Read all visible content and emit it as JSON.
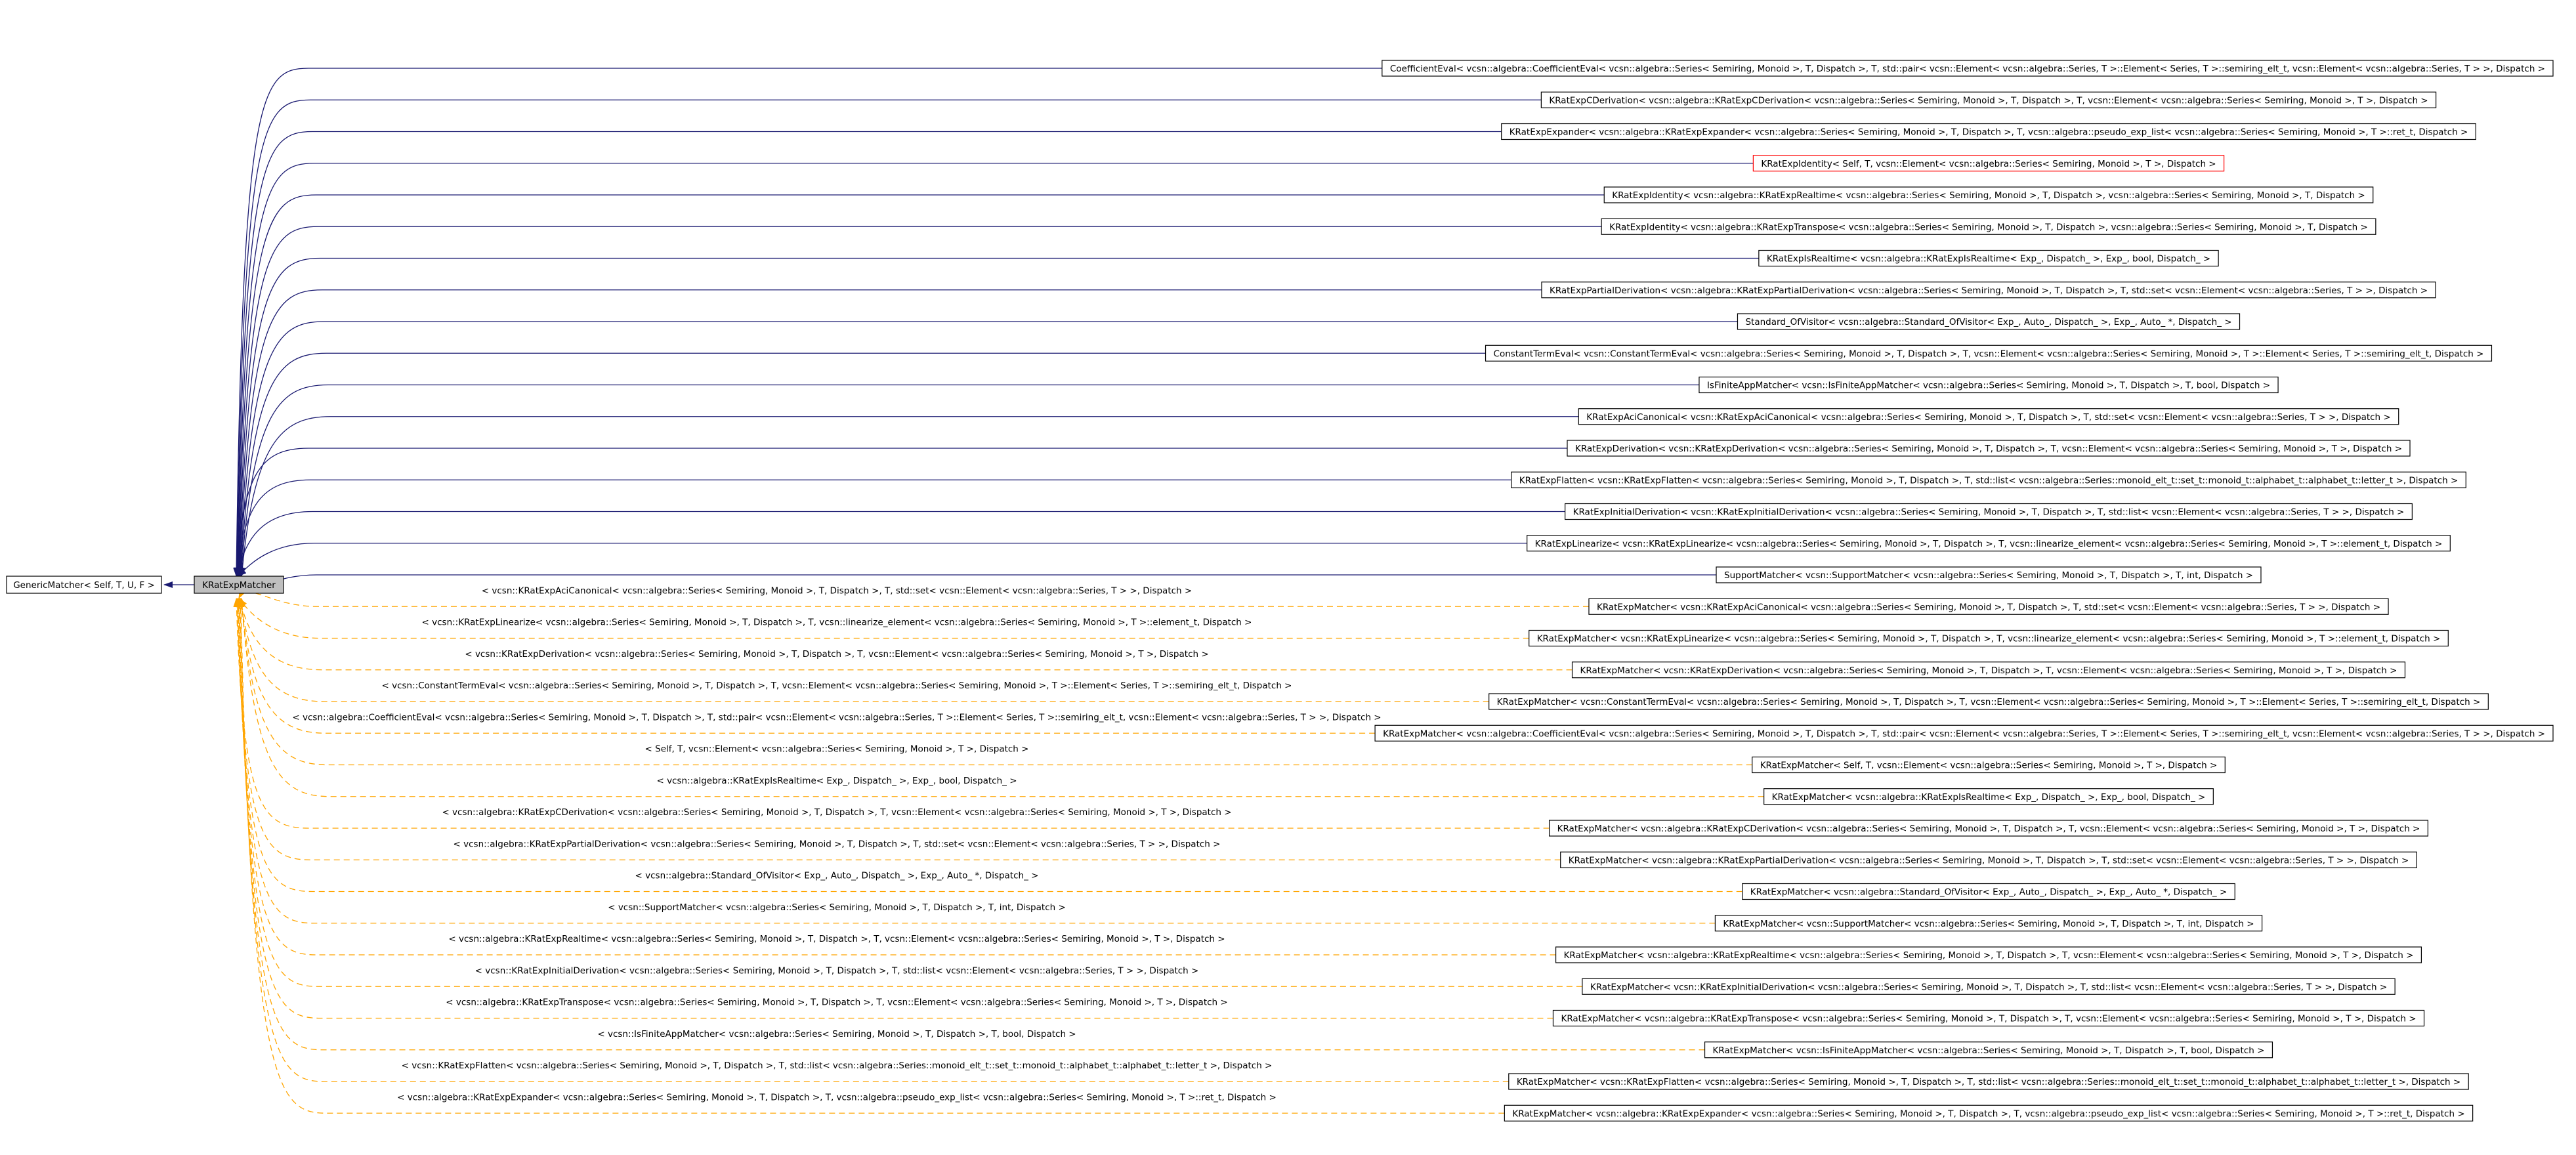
{
  "self_node": "KRatExpMatcher",
  "base_node": "GenericMatcher< Self, T, U, F >",
  "colors": {
    "inheritance_edge": "#191970",
    "template_edge": "#ffa500",
    "self_fill": "#bfbfbf",
    "highlight_border": "#ff0000"
  },
  "derived": [
    {
      "label": "CoefficientEval< vcsn::algebra::CoefficientEval< vcsn::algebra::Series< Semiring, Monoid >, T, Dispatch >, T, std::pair< vcsn::Element< vcsn::algebra::Series, T >::Element< Series, T >::semiring_elt_t, vcsn::Element< vcsn::algebra::Series, T > >, Dispatch >"
    },
    {
      "label": "KRatExpCDerivation< vcsn::algebra::KRatExpCDerivation< vcsn::algebra::Series< Semiring, Monoid >, T, Dispatch >, T, vcsn::Element< vcsn::algebra::Series< Semiring, Monoid >, T >, Dispatch >"
    },
    {
      "label": "KRatExpExpander< vcsn::algebra::KRatExpExpander< vcsn::algebra::Series< Semiring, Monoid >, T, Dispatch >, T, vcsn::algebra::pseudo_exp_list< vcsn::algebra::Series< Semiring, Monoid >, T >::ret_t, Dispatch >"
    },
    {
      "label": "KRatExpIdentity< Self, T, vcsn::Element< vcsn::algebra::Series< Semiring, Monoid >, T >, Dispatch >",
      "highlight": true
    },
    {
      "label": "KRatExpIdentity< vcsn::algebra::KRatExpRealtime< vcsn::algebra::Series< Semiring, Monoid >, T, Dispatch >, vcsn::algebra::Series< Semiring, Monoid >, T, Dispatch >"
    },
    {
      "label": "KRatExpIdentity< vcsn::algebra::KRatExpTranspose< vcsn::algebra::Series< Semiring, Monoid >, T, Dispatch >, vcsn::algebra::Series< Semiring, Monoid >, T, Dispatch >"
    },
    {
      "label": "KRatExpIsRealtime< vcsn::algebra::KRatExpIsRealtime< Exp_, Dispatch_ >, Exp_, bool, Dispatch_ >"
    },
    {
      "label": "KRatExpPartialDerivation< vcsn::algebra::KRatExpPartialDerivation< vcsn::algebra::Series< Semiring, Monoid >, T, Dispatch >, T, std::set< vcsn::Element< vcsn::algebra::Series, T > >, Dispatch >"
    },
    {
      "label": "Standard_OfVisitor< vcsn::algebra::Standard_OfVisitor< Exp_, Auto_, Dispatch_ >, Exp_, Auto_ *, Dispatch_ >"
    },
    {
      "label": "ConstantTermEval< vcsn::ConstantTermEval< vcsn::algebra::Series< Semiring, Monoid >, T, Dispatch >, T, vcsn::Element< vcsn::algebra::Series< Semiring, Monoid >, T >::Element< Series, T >::semiring_elt_t, Dispatch >"
    },
    {
      "label": "IsFiniteAppMatcher< vcsn::IsFiniteAppMatcher< vcsn::algebra::Series< Semiring, Monoid >, T, Dispatch >, T, bool, Dispatch >"
    },
    {
      "label": "KRatExpAciCanonical< vcsn::KRatExpAciCanonical< vcsn::algebra::Series< Semiring, Monoid >, T, Dispatch >, T, std::set< vcsn::Element< vcsn::algebra::Series, T > >, Dispatch >"
    },
    {
      "label": "KRatExpDerivation< vcsn::KRatExpDerivation< vcsn::algebra::Series< Semiring, Monoid >, T, Dispatch >, T, vcsn::Element< vcsn::algebra::Series< Semiring, Monoid >, T >, Dispatch >"
    },
    {
      "label": "KRatExpFlatten< vcsn::KRatExpFlatten< vcsn::algebra::Series< Semiring, Monoid >, T, Dispatch >, T, std::list< vcsn::algebra::Series::monoid_elt_t::set_t::monoid_t::alphabet_t::alphabet_t::letter_t >, Dispatch >"
    },
    {
      "label": "KRatExpInitialDerivation< vcsn::KRatExpInitialDerivation< vcsn::algebra::Series< Semiring, Monoid >, T, Dispatch >, T, std::list< vcsn::Element< vcsn::algebra::Series, T > >, Dispatch >"
    },
    {
      "label": "KRatExpLinearize< vcsn::KRatExpLinearize< vcsn::algebra::Series< Semiring, Monoid >, T, Dispatch >, T, vcsn::linearize_element< vcsn::algebra::Series< Semiring, Monoid >, T >::element_t, Dispatch >"
    },
    {
      "label": "SupportMatcher< vcsn::SupportMatcher< vcsn::algebra::Series< Semiring, Monoid >, T, Dispatch >, T, int, Dispatch >"
    },
    {
      "label": "KRatExpMatcher< vcsn::KRatExpAciCanonical< vcsn::algebra::Series< Semiring, Monoid >, T, Dispatch >, T, std::set< vcsn::Element< vcsn::algebra::Series, T > >, Dispatch >",
      "edge_label": "< vcsn::KRatExpAciCanonical< vcsn::algebra::Series< Semiring, Monoid >, T, Dispatch >, T, std::set< vcsn::Element< vcsn::algebra::Series, T > >, Dispatch >"
    },
    {
      "label": "KRatExpMatcher< vcsn::KRatExpLinearize< vcsn::algebra::Series< Semiring, Monoid >, T, Dispatch >, T, vcsn::linearize_element< vcsn::algebra::Series< Semiring, Monoid >, T >::element_t, Dispatch >",
      "edge_label": "< vcsn::KRatExpLinearize< vcsn::algebra::Series< Semiring, Monoid >, T, Dispatch >, T, vcsn::linearize_element< vcsn::algebra::Series< Semiring, Monoid >, T >::element_t, Dispatch >"
    },
    {
      "label": "KRatExpMatcher< vcsn::KRatExpDerivation< vcsn::algebra::Series< Semiring, Monoid >, T, Dispatch >, T, vcsn::Element< vcsn::algebra::Series< Semiring, Monoid >, T >, Dispatch >",
      "edge_label": "< vcsn::KRatExpDerivation< vcsn::algebra::Series< Semiring, Monoid >, T, Dispatch >, T, vcsn::Element< vcsn::algebra::Series< Semiring, Monoid >, T >, Dispatch >"
    },
    {
      "label": "KRatExpMatcher< vcsn::ConstantTermEval< vcsn::algebra::Series< Semiring, Monoid >, T, Dispatch >, T, vcsn::Element< vcsn::algebra::Series< Semiring, Monoid >, T >::Element< Series, T >::semiring_elt_t, Dispatch >",
      "edge_label": "< vcsn::ConstantTermEval< vcsn::algebra::Series< Semiring, Monoid >, T, Dispatch >, T, vcsn::Element< vcsn::algebra::Series< Semiring, Monoid >, T >::Element< Series, T >::semiring_elt_t, Dispatch >"
    },
    {
      "label": "KRatExpMatcher< vcsn::algebra::CoefficientEval< vcsn::algebra::Series< Semiring, Monoid >, T, Dispatch >, T, std::pair< vcsn::Element< vcsn::algebra::Series, T >::Element< Series, T >::semiring_elt_t, vcsn::Element< vcsn::algebra::Series, T > >, Dispatch >",
      "edge_label": "< vcsn::algebra::CoefficientEval< vcsn::algebra::Series< Semiring, Monoid >, T, Dispatch >, T, std::pair< vcsn::Element< vcsn::algebra::Series, T >::Element< Series, T >::semiring_elt_t, vcsn::Element< vcsn::algebra::Series, T > >, Dispatch >"
    },
    {
      "label": "KRatExpMatcher< Self, T, vcsn::Element< vcsn::algebra::Series< Semiring, Monoid >, T >, Dispatch >",
      "edge_label": "< Self, T, vcsn::Element< vcsn::algebra::Series< Semiring, Monoid >, T >, Dispatch >"
    },
    {
      "label": "KRatExpMatcher< vcsn::algebra::KRatExpIsRealtime< Exp_, Dispatch_ >, Exp_, bool, Dispatch_ >",
      "edge_label": "< vcsn::algebra::KRatExpIsRealtime< Exp_, Dispatch_ >, Exp_, bool, Dispatch_ >"
    },
    {
      "label": "KRatExpMatcher< vcsn::algebra::KRatExpCDerivation< vcsn::algebra::Series< Semiring, Monoid >, T, Dispatch >, T, vcsn::Element< vcsn::algebra::Series< Semiring, Monoid >, T >, Dispatch >",
      "edge_label": "< vcsn::algebra::KRatExpCDerivation< vcsn::algebra::Series< Semiring, Monoid >, T, Dispatch >, T, vcsn::Element< vcsn::algebra::Series< Semiring, Monoid >, T >, Dispatch >"
    },
    {
      "label": "KRatExpMatcher< vcsn::algebra::KRatExpPartialDerivation< vcsn::algebra::Series< Semiring, Monoid >, T, Dispatch >, T, std::set< vcsn::Element< vcsn::algebra::Series, T > >, Dispatch >",
      "edge_label": "< vcsn::algebra::KRatExpPartialDerivation< vcsn::algebra::Series< Semiring, Monoid >, T, Dispatch >, T, std::set< vcsn::Element< vcsn::algebra::Series, T > >, Dispatch >"
    },
    {
      "label": "KRatExpMatcher< vcsn::algebra::Standard_OfVisitor< Exp_, Auto_, Dispatch_ >, Exp_, Auto_ *, Dispatch_ >",
      "edge_label": "< vcsn::algebra::Standard_OfVisitor< Exp_, Auto_, Dispatch_ >, Exp_, Auto_ *, Dispatch_ >"
    },
    {
      "label": "KRatExpMatcher< vcsn::SupportMatcher< vcsn::algebra::Series< Semiring, Monoid >, T, Dispatch >, T, int, Dispatch >",
      "edge_label": "< vcsn::SupportMatcher< vcsn::algebra::Series< Semiring, Monoid >, T, Dispatch >, T, int, Dispatch >"
    },
    {
      "label": "KRatExpMatcher< vcsn::algebra::KRatExpRealtime< vcsn::algebra::Series< Semiring, Monoid >, T, Dispatch >, T, vcsn::Element< vcsn::algebra::Series< Semiring, Monoid >, T >, Dispatch >",
      "edge_label": "< vcsn::algebra::KRatExpRealtime< vcsn::algebra::Series< Semiring, Monoid >, T, Dispatch >, T, vcsn::Element< vcsn::algebra::Series< Semiring, Monoid >, T >, Dispatch >"
    },
    {
      "label": "KRatExpMatcher< vcsn::KRatExpInitialDerivation< vcsn::algebra::Series< Semiring, Monoid >, T, Dispatch >, T, std::list< vcsn::Element< vcsn::algebra::Series, T > >, Dispatch >",
      "edge_label": "< vcsn::KRatExpInitialDerivation< vcsn::algebra::Series< Semiring, Monoid >, T, Dispatch >, T, std::list< vcsn::Element< vcsn::algebra::Series, T > >, Dispatch >"
    },
    {
      "label": "KRatExpMatcher< vcsn::algebra::KRatExpTranspose< vcsn::algebra::Series< Semiring, Monoid >, T, Dispatch >, T, vcsn::Element< vcsn::algebra::Series< Semiring, Monoid >, T >, Dispatch >",
      "edge_label": "< vcsn::algebra::KRatExpTranspose< vcsn::algebra::Series< Semiring, Monoid >, T, Dispatch >, T, vcsn::Element< vcsn::algebra::Series< Semiring, Monoid >, T >, Dispatch >"
    },
    {
      "label": "KRatExpMatcher< vcsn::IsFiniteAppMatcher< vcsn::algebra::Series< Semiring, Monoid >, T, Dispatch >, T, bool, Dispatch >",
      "edge_label": "< vcsn::IsFiniteAppMatcher< vcsn::algebra::Series< Semiring, Monoid >, T, Dispatch >, T, bool, Dispatch >"
    },
    {
      "label": "KRatExpMatcher< vcsn::KRatExpFlatten< vcsn::algebra::Series< Semiring, Monoid >, T, Dispatch >, T, std::list< vcsn::algebra::Series::monoid_elt_t::set_t::monoid_t::alphabet_t::alphabet_t::letter_t >, Dispatch >",
      "edge_label": "< vcsn::KRatExpFlatten< vcsn::algebra::Series< Semiring, Monoid >, T, Dispatch >, T, std::list< vcsn::algebra::Series::monoid_elt_t::set_t::monoid_t::alphabet_t::alphabet_t::letter_t >, Dispatch >"
    },
    {
      "label": "KRatExpMatcher< vcsn::algebra::KRatExpExpander< vcsn::algebra::Series< Semiring, Monoid >, T, Dispatch >, T, vcsn::algebra::pseudo_exp_list< vcsn::algebra::Series< Semiring, Monoid >, T >::ret_t, Dispatch >",
      "edge_label": "< vcsn::algebra::KRatExpExpander< vcsn::algebra::Series< Semiring, Monoid >, T, Dispatch >, T, vcsn::algebra::pseudo_exp_list< vcsn::algebra::Series< Semiring, Monoid >, T >::ret_t, Dispatch >"
    }
  ]
}
